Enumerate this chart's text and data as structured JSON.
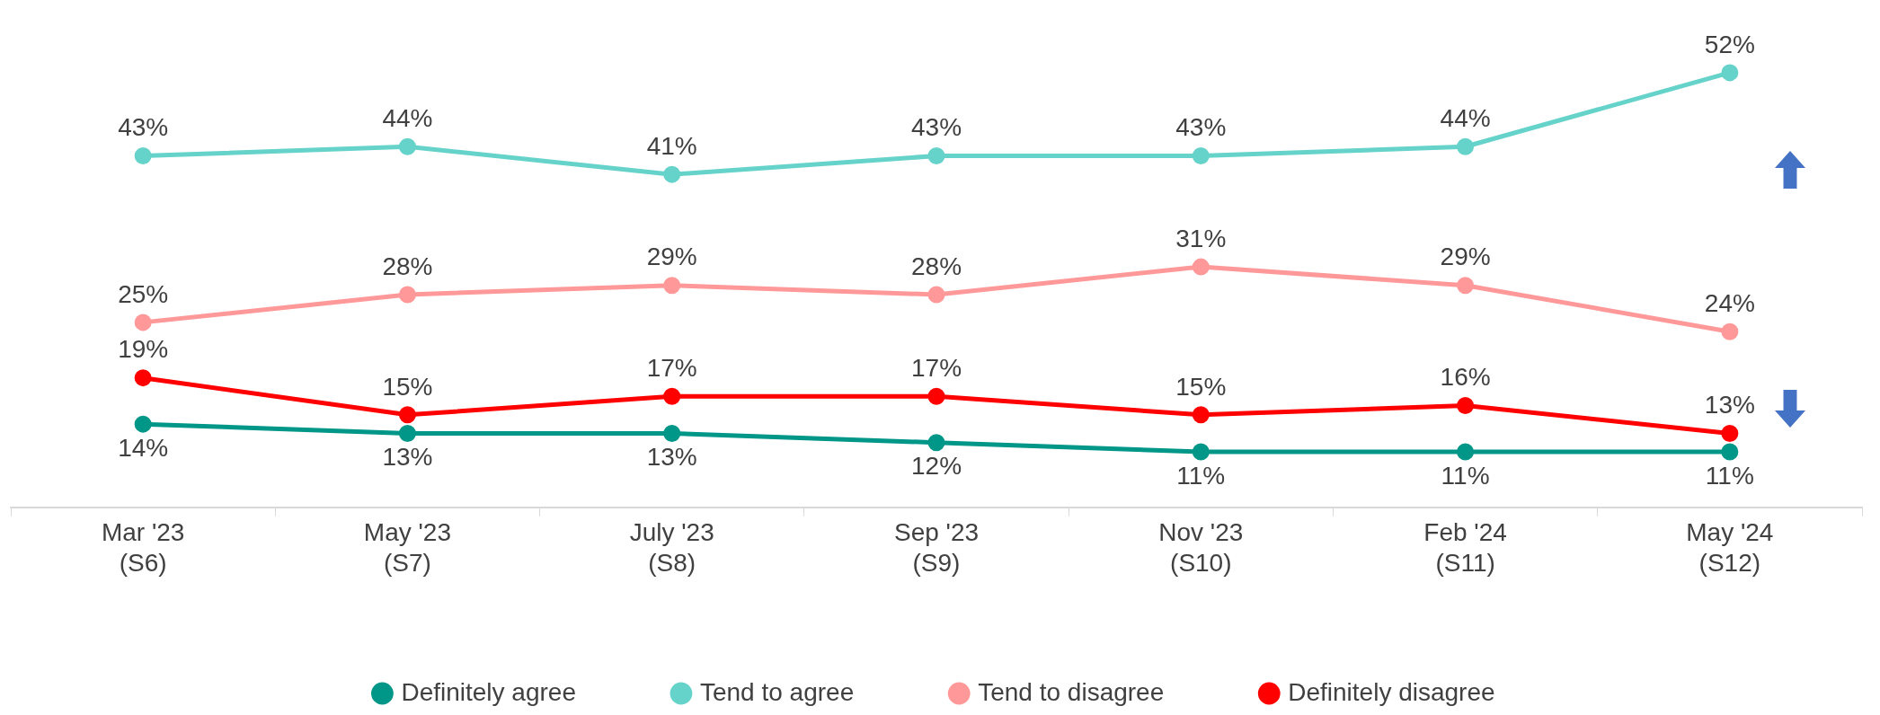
{
  "chart_data": {
    "type": "line",
    "categories": [
      "Mar '23\n(S6)",
      "May '23\n(S7)",
      "July '23\n(S8)",
      "Sep '23\n(S9)",
      "Nov '23\n(S10)",
      "Feb '24\n(S11)",
      "May '24\n(S12)"
    ],
    "series": [
      {
        "name": "Definitely agree",
        "color": "#009688",
        "values": [
          14,
          13,
          13,
          12,
          11,
          11,
          11
        ],
        "value_labels": [
          "14%",
          "13%",
          "13%",
          "12%",
          "11%",
          "11%",
          "11%"
        ]
      },
      {
        "name": "Tend to agree",
        "color": "#66d3cb",
        "values": [
          43,
          44,
          41,
          43,
          43,
          44,
          52
        ],
        "value_labels": [
          "43%",
          "44%",
          "41%",
          "43%",
          "43%",
          "44%",
          "52%"
        ]
      },
      {
        "name": "Tend to disagree",
        "color": "#ff9999",
        "values": [
          25,
          28,
          29,
          28,
          31,
          29,
          24
        ],
        "value_labels": [
          "25%",
          "28%",
          "29%",
          "28%",
          "31%",
          "29%",
          "24%"
        ]
      },
      {
        "name": "Definitely disagree",
        "color": "#ff0000",
        "values": [
          19,
          15,
          17,
          17,
          15,
          16,
          13
        ],
        "value_labels": [
          "19%",
          "15%",
          "17%",
          "17%",
          "15%",
          "16%",
          "13%"
        ]
      }
    ],
    "tick_labels": "x",
    "grid": false,
    "legend": "bottom",
    "marker": "circle",
    "line_style": "solid"
  }
}
